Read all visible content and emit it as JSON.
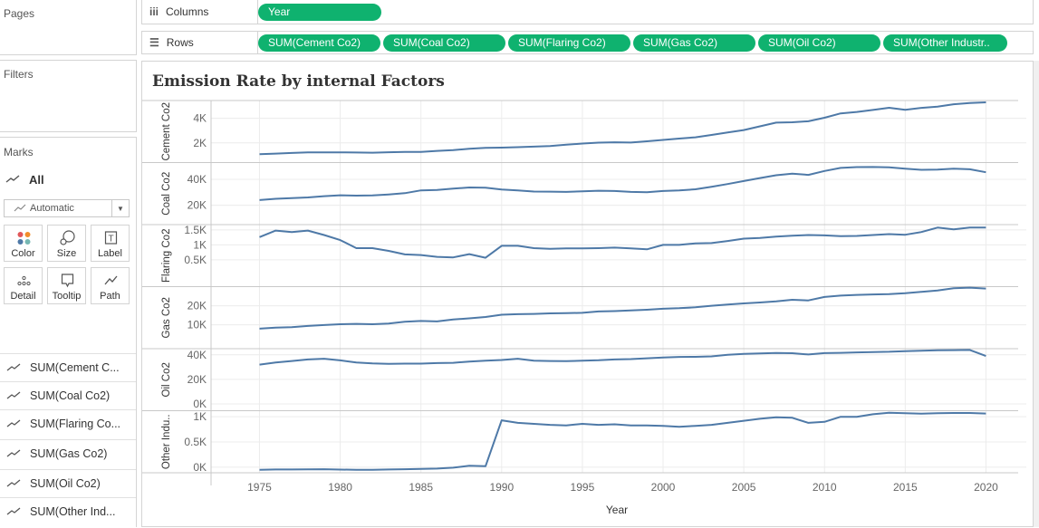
{
  "sidebar": {
    "pages_label": "Pages",
    "filters_label": "Filters",
    "marks_label": "Marks",
    "marks_all": "All",
    "mark_type": "Automatic",
    "mark_buttons": [
      {
        "label": "Color",
        "icon": "color-dots-icon"
      },
      {
        "label": "Size",
        "icon": "size-icon"
      },
      {
        "label": "Label",
        "icon": "label-icon"
      },
      {
        "label": "Detail",
        "icon": "detail-dots-icon"
      },
      {
        "label": "Tooltip",
        "icon": "tooltip-icon"
      },
      {
        "label": "Path",
        "icon": "path-icon"
      }
    ],
    "fields": [
      "SUM(Cement C...",
      "SUM(Coal Co2)",
      "SUM(Flaring Co...",
      "SUM(Gas Co2)",
      "SUM(Oil Co2)",
      "SUM(Other Ind..."
    ]
  },
  "shelves": {
    "columns_label": "Columns",
    "rows_label": "Rows",
    "column_pills": [
      "Year"
    ],
    "row_pills": [
      "SUM(Cement Co2)",
      "SUM(Coal Co2)",
      "SUM(Flaring Co2)",
      "SUM(Gas Co2)",
      "SUM(Oil Co2)",
      "SUM(Other Industr.."
    ]
  },
  "colors": {
    "pill": "#0fb26f",
    "line": "#4e79a7",
    "grid": "#ececec",
    "divider": "#c8c8c8"
  },
  "chart_data": {
    "type": "line",
    "title": "Emission Rate by internal Factors",
    "xlabel": "Year",
    "x_ticks": [
      1975,
      1980,
      1985,
      1990,
      1995,
      2000,
      2005,
      2010,
      2015,
      2020
    ],
    "xlim": [
      1972,
      2022.5
    ],
    "x": [
      1975,
      1976,
      1977,
      1978,
      1979,
      1980,
      1981,
      1982,
      1983,
      1984,
      1985,
      1986,
      1987,
      1988,
      1989,
      1990,
      1991,
      1992,
      1993,
      1994,
      1995,
      1996,
      1997,
      1998,
      1999,
      2000,
      2001,
      2002,
      2003,
      2004,
      2005,
      2006,
      2007,
      2008,
      2009,
      2010,
      2011,
      2012,
      2013,
      2014,
      2015,
      2016,
      2017,
      2018,
      2019,
      2020
    ],
    "grid": true,
    "series": [
      {
        "name": "Cement Co2",
        "ylabel": "Cement Co2",
        "ticks": [
          {
            "v": 2000,
            "label": "2K"
          },
          {
            "v": 4000,
            "label": "4K"
          }
        ],
        "ylim": [
          400,
          5450
        ],
        "values": [
          1080,
          1130,
          1180,
          1230,
          1230,
          1235,
          1220,
          1200,
          1240,
          1260,
          1270,
          1350,
          1420,
          1520,
          1600,
          1620,
          1650,
          1700,
          1750,
          1850,
          1950,
          2020,
          2050,
          2030,
          2130,
          2240,
          2350,
          2460,
          2650,
          2850,
          3050,
          3350,
          3650,
          3680,
          3760,
          4050,
          4400,
          4520,
          4680,
          4860,
          4700,
          4850,
          4950,
          5150,
          5250,
          5300
        ]
      },
      {
        "name": "Coal Co2",
        "ylabel": "Coal Co2",
        "ticks": [
          {
            "v": 20000,
            "label": "20K"
          },
          {
            "v": 40000,
            "label": "40K"
          }
        ],
        "ylim": [
          5000,
          53000
        ],
        "values": [
          24000,
          25000,
          25500,
          26000,
          27000,
          27700,
          27400,
          27600,
          28300,
          29300,
          31500,
          31800,
          32800,
          33700,
          33500,
          32100,
          31400,
          30600,
          30500,
          30300,
          30800,
          31200,
          31000,
          30300,
          30000,
          31000,
          31500,
          32300,
          34200,
          36400,
          38700,
          41000,
          43200,
          44400,
          43500,
          46500,
          48900,
          49500,
          49600,
          49300,
          48300,
          47400,
          47600,
          48300,
          47800,
          45500
        ]
      },
      {
        "name": "Flaring Co2",
        "ylabel": "Flaring Co2",
        "ticks": [
          {
            "v": 500,
            "label": "0.5K"
          },
          {
            "v": 1000,
            "label": "1K"
          },
          {
            "v": 1500,
            "label": "1.5K"
          }
        ],
        "ylim": [
          -400,
          1680
        ],
        "values": [
          1260,
          1480,
          1430,
          1480,
          1330,
          1160,
          890,
          890,
          800,
          680,
          660,
          600,
          580,
          690,
          570,
          970,
          970,
          890,
          870,
          880,
          880,
          890,
          910,
          880,
          850,
          1000,
          1000,
          1050,
          1060,
          1130,
          1210,
          1230,
          1280,
          1310,
          1330,
          1320,
          1290,
          1300,
          1330,
          1360,
          1340,
          1430,
          1580,
          1520,
          1580,
          1580
        ]
      },
      {
        "name": "Gas Co2",
        "ylabel": "Gas Co2",
        "ticks": [
          {
            "v": 10000,
            "label": "10K"
          },
          {
            "v": 20000,
            "label": "20K"
          }
        ],
        "ylim": [
          -2500,
          30000
        ],
        "values": [
          8000,
          8500,
          8800,
          9400,
          9900,
          10300,
          10500,
          10300,
          10700,
          11600,
          12000,
          11800,
          12800,
          13400,
          14100,
          15300,
          15600,
          15700,
          16000,
          16100,
          16300,
          17000,
          17200,
          17500,
          17900,
          18400,
          18700,
          19200,
          20000,
          20600,
          21200,
          21700,
          22300,
          23100,
          22800,
          24600,
          25300,
          25700,
          25900,
          26100,
          26600,
          27300,
          28000,
          29200,
          29500,
          29000
        ]
      },
      {
        "name": "Oil Co2",
        "ylabel": "Oil Co2",
        "ticks": [
          {
            "v": 0,
            "label": "0K"
          },
          {
            "v": 20000,
            "label": "20K"
          },
          {
            "v": 40000,
            "label": "40K"
          }
        ],
        "ylim": [
          -5500,
          45000
        ],
        "values": [
          32000,
          33800,
          35000,
          36200,
          36800,
          35500,
          33800,
          33000,
          32700,
          32800,
          32800,
          33300,
          33500,
          34500,
          35200,
          35800,
          36800,
          35200,
          35000,
          34900,
          35200,
          35600,
          36200,
          36500,
          37200,
          37800,
          38300,
          38400,
          38700,
          40000,
          40800,
          41200,
          41500,
          41300,
          40300,
          41400,
          41600,
          42000,
          42300,
          42500,
          43000,
          43300,
          43700,
          43800,
          44000,
          39000
        ]
      },
      {
        "name": "Other Industry Co2",
        "ylabel": "Other Indu..",
        "ticks": [
          {
            "v": 0,
            "label": "0K"
          },
          {
            "v": 500,
            "label": "0.5K"
          },
          {
            "v": 1000,
            "label": "1K"
          }
        ],
        "ylim": [
          -110,
          1120
        ],
        "values": [
          -50,
          -45,
          -45,
          -42,
          -40,
          -48,
          -50,
          -52,
          -45,
          -40,
          -35,
          -28,
          -10,
          30,
          20,
          930,
          880,
          860,
          840,
          830,
          860,
          840,
          850,
          830,
          830,
          820,
          800,
          820,
          840,
          880,
          920,
          960,
          990,
          980,
          880,
          900,
          1000,
          1000,
          1050,
          1080,
          1070,
          1060,
          1070,
          1075,
          1075,
          1065
        ]
      }
    ]
  }
}
